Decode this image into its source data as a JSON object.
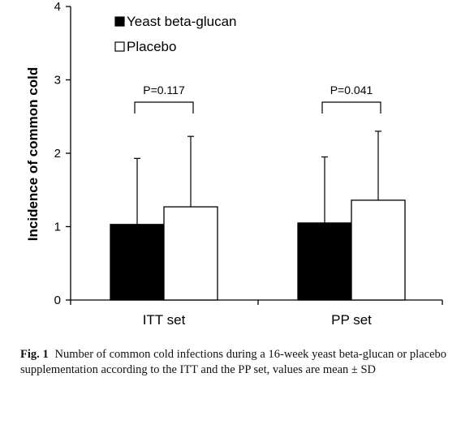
{
  "chart_data": {
    "type": "bar",
    "categories": [
      "ITT set",
      "PP set"
    ],
    "series": [
      {
        "name": "Yeast beta-glucan",
        "values": [
          1.03,
          1.05
        ],
        "sd_upper": [
          1.93,
          1.95
        ],
        "color": "#000000"
      },
      {
        "name": "Placebo",
        "values": [
          1.27,
          1.36
        ],
        "sd_upper": [
          2.23,
          2.3
        ],
        "color": "#ffffff"
      }
    ],
    "ylabel": "Incidence of common cold",
    "xlabel": "",
    "ylim": [
      0,
      4
    ],
    "yticks": [
      "0",
      "1",
      "2",
      "3",
      "4"
    ],
    "annotations": [
      "P=0.117",
      "P=0.041"
    ],
    "legend_position": "top-left",
    "grid": false
  },
  "caption": {
    "label": "Fig. 1",
    "text": "Number of common cold infections during a 16-week yeast beta-glucan or placebo supplementation according to the ITT and the PP set, values are mean ± SD"
  }
}
